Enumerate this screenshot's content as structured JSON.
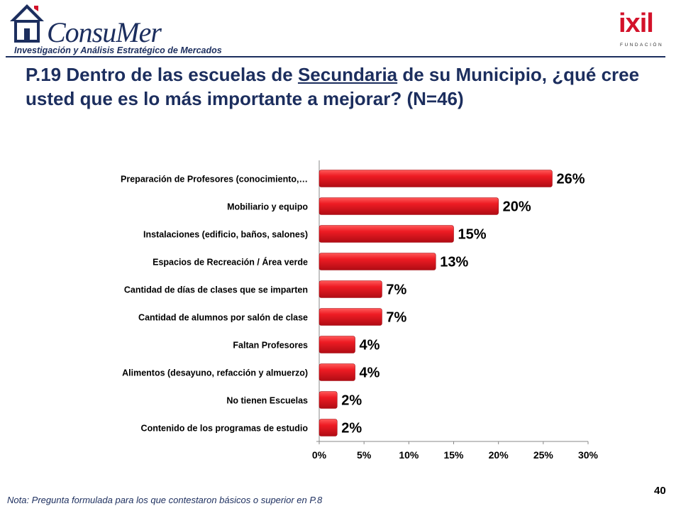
{
  "header": {
    "brand_name": "ConsuMer",
    "brand_tagline": "Investigación y Análisis Estratégico de Mercados",
    "right_logo_word": "ixil",
    "right_logo_sub": "FUNDACIÓN"
  },
  "title": {
    "prefix": "P.19 Dentro de las escuelas de ",
    "underlined": "Secundaria",
    "suffix": " de su Municipio, ¿qué cree usted que es lo más importante a mejorar? (N=46)"
  },
  "footnote": "Nota: Pregunta formulada para los que contestaron básicos o superior en P.8",
  "page_number": "40",
  "colors": {
    "bar": "#e3101c",
    "bar_light": "#ff4a4a",
    "title": "#1c2e5e"
  },
  "chart_data": {
    "type": "bar",
    "orientation": "horizontal",
    "categories": [
      "Preparación de Profesores (conocimiento,…",
      "Mobiliario y equipo",
      "Instalaciones (edificio, baños, salones)",
      "Espacios de Recreación / Área verde",
      "Cantidad de días de clases que se imparten",
      "Cantidad de alumnos por salón de clase",
      "Faltan Profesores",
      "Alimentos  (desayuno, refacción y almuerzo)",
      "No tienen Escuelas",
      "Contenido de los programas de estudio"
    ],
    "values": [
      26,
      20,
      15,
      13,
      7,
      7,
      4,
      4,
      2,
      2
    ],
    "data_labels": [
      "26%",
      "20%",
      "15%",
      "13%",
      "7%",
      "7%",
      "4%",
      "4%",
      "2%",
      "2%"
    ],
    "x_ticks": [
      "0%",
      "5%",
      "10%",
      "15%",
      "20%",
      "25%",
      "30%"
    ],
    "xlim": [
      0,
      30
    ],
    "grid": false
  }
}
